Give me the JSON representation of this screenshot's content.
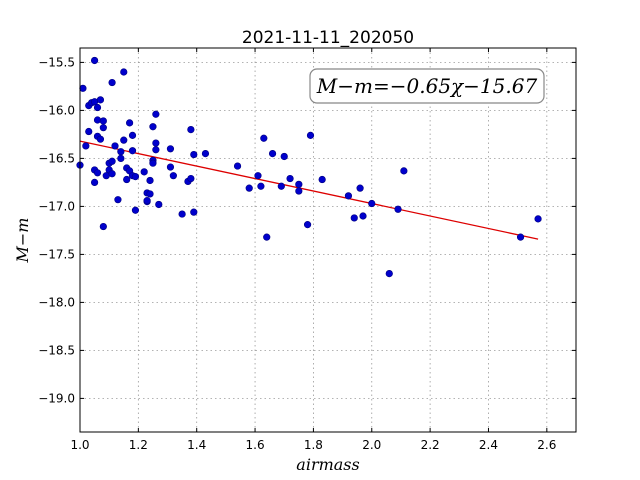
{
  "chart_data": {
    "type": "scatter",
    "title": "2021-11-11_202050",
    "xlabel": "airmass",
    "ylabel": "M−m",
    "xlim": [
      1.0,
      2.7
    ],
    "ylim": [
      -19.35,
      -15.35
    ],
    "y_inverted": false,
    "grid": true,
    "xticks": [
      "1.0",
      "1.2",
      "1.4",
      "1.6",
      "1.8",
      "2.0",
      "2.2",
      "2.4",
      "2.6"
    ],
    "xtick_values": [
      1.0,
      1.2,
      1.4,
      1.6,
      1.8,
      2.0,
      2.2,
      2.4,
      2.6
    ],
    "yticks": [
      "−15.5",
      "−16.0",
      "−16.5",
      "−17.0",
      "−17.5",
      "−18.0",
      "−18.5",
      "−19.0"
    ],
    "ytick_values": [
      -15.5,
      -16.0,
      -16.5,
      -17.0,
      -17.5,
      -18.0,
      -18.5,
      -19.0
    ],
    "annotation": "M−m=−0.65χ−15.67",
    "annotation_position": "top-right",
    "fit": {
      "slope": -0.65,
      "intercept": -15.67,
      "x_range": [
        1.0,
        2.57
      ]
    },
    "series": [
      {
        "color": "#0000cc",
        "points": [
          [
            1.0,
            -16.57
          ],
          [
            1.01,
            -15.77
          ],
          [
            1.02,
            -16.37
          ],
          [
            1.03,
            -15.95
          ],
          [
            1.03,
            -16.22
          ],
          [
            1.04,
            -15.92
          ],
          [
            1.05,
            -15.48
          ],
          [
            1.05,
            -15.91
          ],
          [
            1.05,
            -16.62
          ],
          [
            1.05,
            -16.75
          ],
          [
            1.06,
            -16.27
          ],
          [
            1.06,
            -16.65
          ],
          [
            1.06,
            -16.1
          ],
          [
            1.06,
            -15.97
          ],
          [
            1.07,
            -15.89
          ],
          [
            1.07,
            -16.3
          ],
          [
            1.08,
            -16.11
          ],
          [
            1.08,
            -16.18
          ],
          [
            1.08,
            -17.21
          ],
          [
            1.09,
            -16.68
          ],
          [
            1.1,
            -16.55
          ],
          [
            1.1,
            -16.62
          ],
          [
            1.11,
            -16.66
          ],
          [
            1.11,
            -15.71
          ],
          [
            1.11,
            -16.53
          ],
          [
            1.12,
            -16.37
          ],
          [
            1.13,
            -16.93
          ],
          [
            1.14,
            -16.43
          ],
          [
            1.14,
            -16.5
          ],
          [
            1.15,
            -15.6
          ],
          [
            1.15,
            -16.31
          ],
          [
            1.16,
            -16.6
          ],
          [
            1.16,
            -16.72
          ],
          [
            1.17,
            -16.63
          ],
          [
            1.17,
            -16.13
          ],
          [
            1.18,
            -16.26
          ],
          [
            1.18,
            -16.42
          ],
          [
            1.18,
            -16.68
          ],
          [
            1.19,
            -16.69
          ],
          [
            1.19,
            -17.04
          ],
          [
            1.22,
            -16.64
          ],
          [
            1.23,
            -16.86
          ],
          [
            1.23,
            -16.95
          ],
          [
            1.23,
            -16.94
          ],
          [
            1.24,
            -16.73
          ],
          [
            1.24,
            -16.87
          ],
          [
            1.25,
            -16.52
          ],
          [
            1.25,
            -16.55
          ],
          [
            1.25,
            -16.17
          ],
          [
            1.26,
            -16.34
          ],
          [
            1.26,
            -16.41
          ],
          [
            1.26,
            -16.04
          ],
          [
            1.27,
            -16.98
          ],
          [
            1.31,
            -16.59
          ],
          [
            1.31,
            -16.4
          ],
          [
            1.32,
            -16.68
          ],
          [
            1.35,
            -17.08
          ],
          [
            1.37,
            -16.74
          ],
          [
            1.38,
            -16.71
          ],
          [
            1.38,
            -16.2
          ],
          [
            1.39,
            -16.46
          ],
          [
            1.39,
            -17.06
          ],
          [
            1.43,
            -16.45
          ],
          [
            1.54,
            -16.58
          ],
          [
            1.58,
            -16.81
          ],
          [
            1.61,
            -16.68
          ],
          [
            1.62,
            -16.79
          ],
          [
            1.63,
            -16.29
          ],
          [
            1.64,
            -17.32
          ],
          [
            1.66,
            -16.45
          ],
          [
            1.69,
            -16.79
          ],
          [
            1.7,
            -16.48
          ],
          [
            1.72,
            -16.71
          ],
          [
            1.75,
            -16.77
          ],
          [
            1.75,
            -16.84
          ],
          [
            1.78,
            -17.19
          ],
          [
            1.79,
            -16.26
          ],
          [
            1.83,
            -16.72
          ],
          [
            1.92,
            -16.89
          ],
          [
            1.94,
            -17.12
          ],
          [
            1.96,
            -16.81
          ],
          [
            1.97,
            -17.1
          ],
          [
            2.0,
            -16.97
          ],
          [
            2.06,
            -17.7
          ],
          [
            2.09,
            -17.03
          ],
          [
            2.11,
            -16.63
          ],
          [
            2.51,
            -17.32
          ],
          [
            2.57,
            -17.13
          ]
        ]
      }
    ]
  }
}
